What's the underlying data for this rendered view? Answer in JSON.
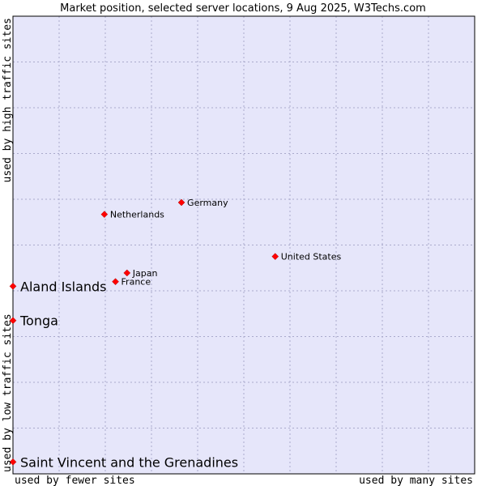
{
  "chart_data": {
    "type": "scatter",
    "title": "Market position, selected server locations, 9 Aug 2025, W3Techs.com",
    "xlabel_left": "used by fewer sites",
    "xlabel_right": "used by many sites",
    "ylabel_top": "used by high traffic sites",
    "ylabel_bottom": "used by low traffic sites",
    "xlim": [
      0,
      100
    ],
    "ylim": [
      0,
      100
    ],
    "grid": true,
    "colors": {
      "plot_bg": "#e6e6fa",
      "point": "#ff0000",
      "grid": "#aaaacc"
    },
    "points": [
      {
        "name": "Germany",
        "x": 36.5,
        "y": 59.3,
        "label_size": "small"
      },
      {
        "name": "Netherlands",
        "x": 19.8,
        "y": 56.7,
        "label_size": "small"
      },
      {
        "name": "United States",
        "x": 56.8,
        "y": 47.5,
        "label_size": "small"
      },
      {
        "name": "Japan",
        "x": 24.7,
        "y": 43.9,
        "label_size": "small"
      },
      {
        "name": "France",
        "x": 22.2,
        "y": 42.0,
        "label_size": "small"
      },
      {
        "name": "Aland Islands",
        "x": 0,
        "y": 41.0,
        "label_size": "big"
      },
      {
        "name": "Tonga",
        "x": 0,
        "y": 33.5,
        "label_size": "big"
      },
      {
        "name": "Saint Vincent and the Grenadines",
        "x": 0,
        "y": 2.6,
        "label_size": "big"
      }
    ]
  }
}
